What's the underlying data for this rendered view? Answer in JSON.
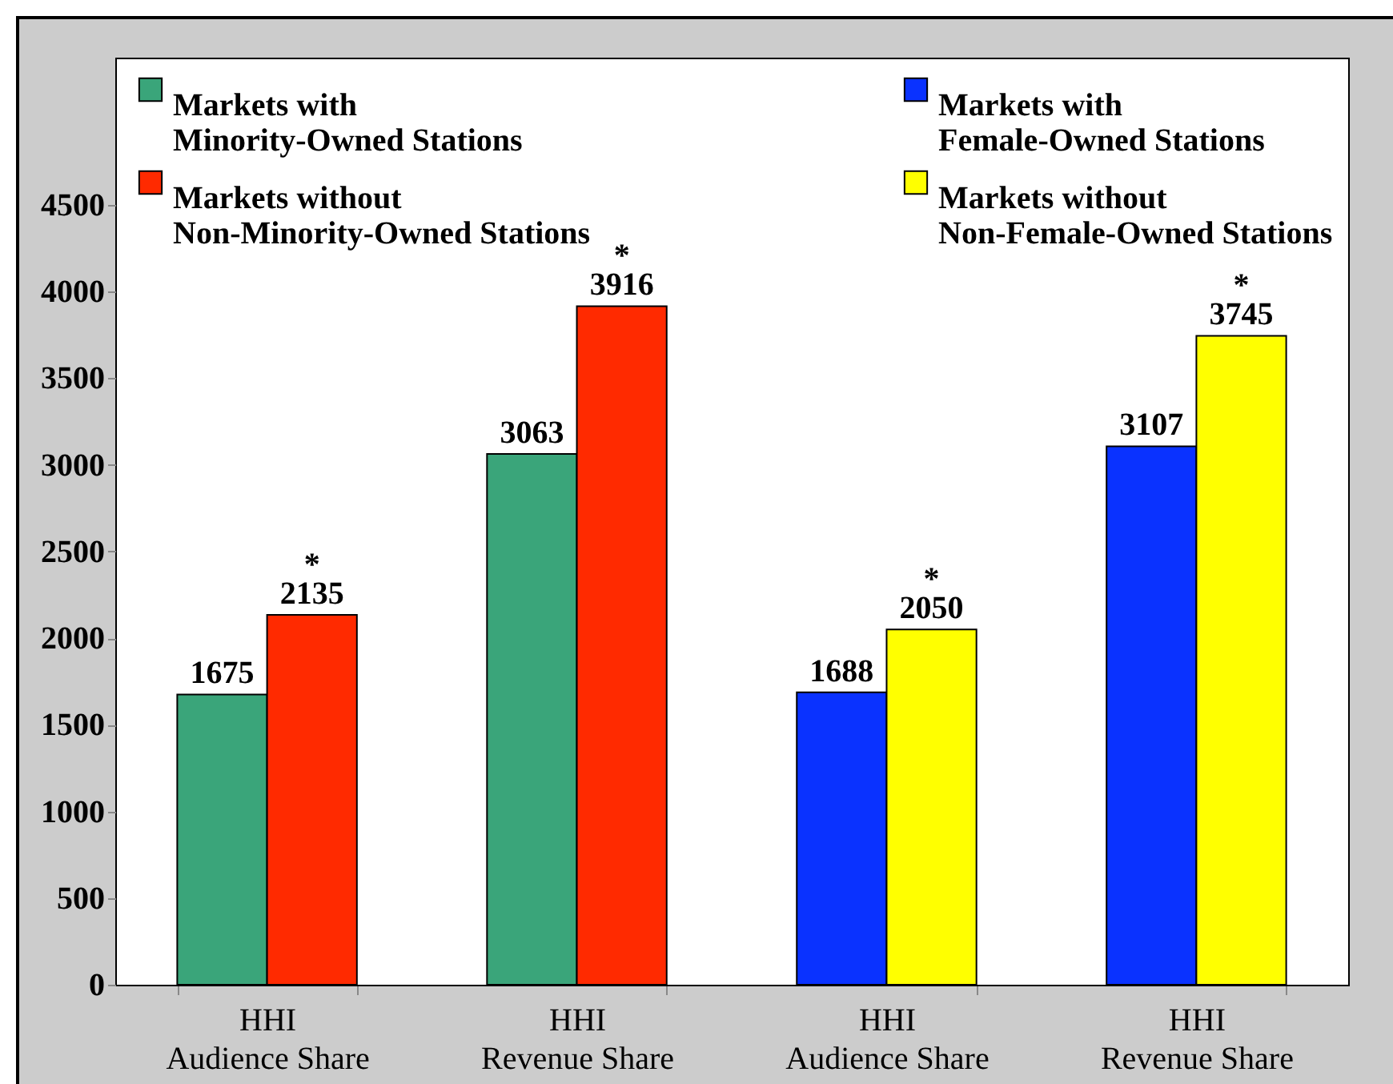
{
  "chart_data": {
    "type": "bar",
    "categories": [
      "HHI\nAudience Share",
      "HHI\nRevenue Share",
      "HHI\nAudience Share",
      "HHI\nRevenue Share"
    ],
    "series": [
      {
        "name": "Markets with\nMinority-Owned Stations",
        "color": "#3aa57a",
        "values": [
          1675,
          3063,
          null,
          null
        ],
        "value_labels": [
          "1675",
          "3063",
          null,
          null
        ]
      },
      {
        "name": "Markets without\nNon-Minority-Owned Stations",
        "color": "#ff2a00",
        "values": [
          2135,
          3916,
          null,
          null
        ],
        "value_labels": [
          "*\n2135",
          "*\n3916",
          null,
          null
        ]
      },
      {
        "name": "Markets with\nFemale-Owned Stations",
        "color": "#0a32ff",
        "values": [
          null,
          null,
          1688,
          3107
        ],
        "value_labels": [
          null,
          null,
          "1688",
          "3107"
        ]
      },
      {
        "name": "Markets without\nNon-Female-Owned Stations",
        "color": "#ffff00",
        "values": [
          null,
          null,
          2050,
          3745
        ],
        "value_labels": [
          null,
          null,
          "*\n2050",
          "*\n3745"
        ]
      }
    ],
    "ylim": [
      0,
      5350
    ],
    "yticks": [
      0,
      500,
      1000,
      1500,
      2000,
      2500,
      3000,
      3500,
      4000,
      4500
    ],
    "legend": "top",
    "grid": false
  }
}
